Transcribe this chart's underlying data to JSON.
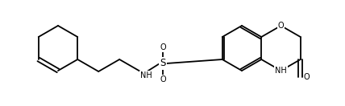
{
  "bg_color": "#ffffff",
  "line_color": "#000000",
  "line_width": 1.3,
  "font_size": 7.0,
  "figsize": [
    4.28,
    1.32
  ],
  "dpi": 100,
  "xlim": [
    0,
    428
  ],
  "ylim": [
    0,
    132
  ]
}
